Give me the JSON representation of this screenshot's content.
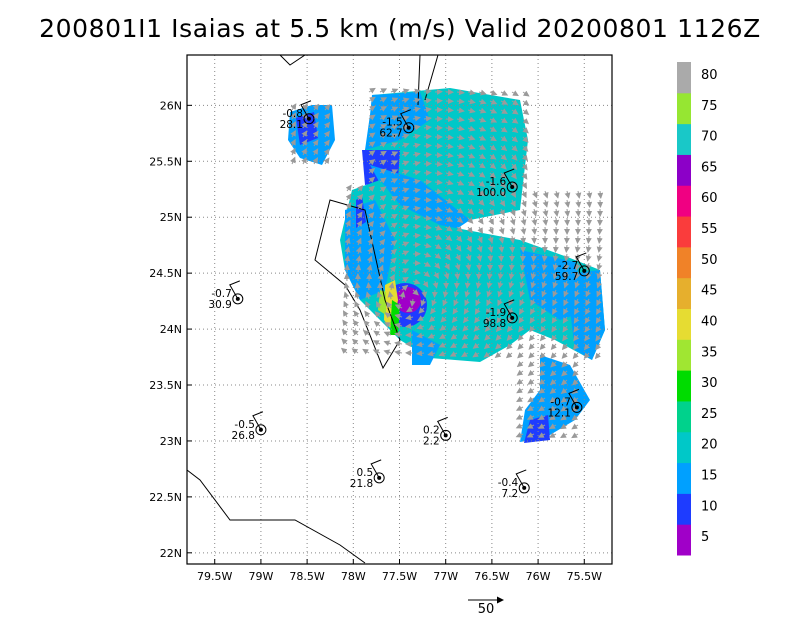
{
  "title": "200801I1 Isaias at 5.5 km (m/s) Valid 20200801 1126Z",
  "axes": {
    "lon_ticks": [
      "79.5W",
      "79W",
      "78.5W",
      "78W",
      "77.5W",
      "77W",
      "76.5W",
      "76W",
      "75.5W"
    ],
    "lon_values": [
      -79.5,
      -79,
      -78.5,
      -78,
      -77.5,
      -77,
      -76.5,
      -76,
      -75.5
    ],
    "lat_ticks": [
      "22N",
      "22.5N",
      "23N",
      "23.5N",
      "24N",
      "24.5N",
      "25N",
      "25.5N",
      "26N"
    ],
    "lat_values": [
      22,
      22.5,
      23,
      23.5,
      24,
      24.5,
      25,
      25.5,
      26
    ]
  },
  "stations": [
    {
      "top": "-0.8",
      "bottom": "28.1",
      "lon": -78.48,
      "lat": 25.88
    },
    {
      "top": "-1.5",
      "bottom": "62.7",
      "lon": -77.4,
      "lat": 25.8
    },
    {
      "top": "-1.6",
      "bottom": "100.0",
      "lon": -76.28,
      "lat": 25.27
    },
    {
      "top": "-2.7",
      "bottom": "59.7",
      "lon": -75.5,
      "lat": 24.52
    },
    {
      "top": "-0.7",
      "bottom": "30.9",
      "lon": -79.25,
      "lat": 24.27
    },
    {
      "top": "-1.9",
      "bottom": "98.8",
      "lon": -76.28,
      "lat": 24.1
    },
    {
      "top": "-0.7",
      "bottom": "12.1",
      "lon": -75.58,
      "lat": 23.3
    },
    {
      "top": "-0.5",
      "bottom": "26.8",
      "lon": -79.0,
      "lat": 23.1
    },
    {
      "top": "0.2",
      "bottom": "2.2",
      "lon": -77.0,
      "lat": 23.05
    },
    {
      "top": "0.5",
      "bottom": "21.8",
      "lon": -77.72,
      "lat": 22.67
    },
    {
      "top": "-0.4",
      "bottom": "7.2",
      "lon": -76.15,
      "lat": 22.58
    }
  ],
  "colorbar": {
    "labels": [
      "5",
      "10",
      "15",
      "20",
      "25",
      "30",
      "35",
      "40",
      "45",
      "50",
      "55",
      "60",
      "65",
      "70",
      "75",
      "80"
    ],
    "colors": [
      "#a000c8",
      "#1e3cff",
      "#00a0ff",
      "#00c8c8",
      "#00d28c",
      "#00dc00",
      "#a0e632",
      "#e6dc32",
      "#e6af2d",
      "#f08228",
      "#fa3c3c",
      "#f00082",
      "#8c00c8",
      "#19c8c8",
      "#96e632",
      "#aaaaaa"
    ]
  },
  "reference_vector": {
    "label": "50"
  }
}
